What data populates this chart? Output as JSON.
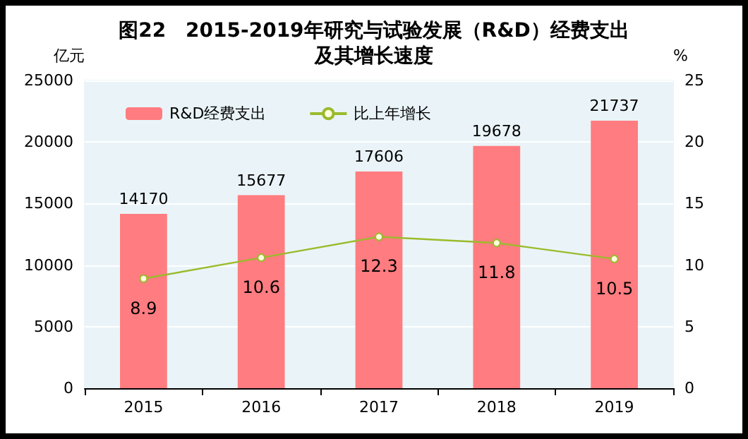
{
  "chart_data": {
    "type": "bar",
    "title": "图22　2015-2019年研究与试验发展（R&D）经费支出及其增长速度",
    "ylabel": "亿元",
    "y2label": "%",
    "categories": [
      "2015",
      "2016",
      "2017",
      "2018",
      "2019"
    ],
    "series": [
      {
        "name": "R&D经费支出",
        "color": "#ff7c80",
        "values": [
          14170,
          15677,
          17606,
          19678,
          21737
        ]
      },
      {
        "name": "比上年增长",
        "type": "line",
        "axis": "y2",
        "color": "#9bbb2c",
        "marker": "circle",
        "values": [
          8.9,
          10.6,
          12.3,
          11.8,
          10.5
        ]
      }
    ],
    "ylim": [
      0,
      25000
    ],
    "yticks": [
      0,
      5000,
      10000,
      15000,
      20000,
      25000
    ],
    "y2lim": [
      0,
      25
    ],
    "y2ticks": [
      0,
      5,
      10,
      15,
      20,
      25
    ],
    "grid": "y",
    "legend": "top left",
    "data_labels": true
  }
}
